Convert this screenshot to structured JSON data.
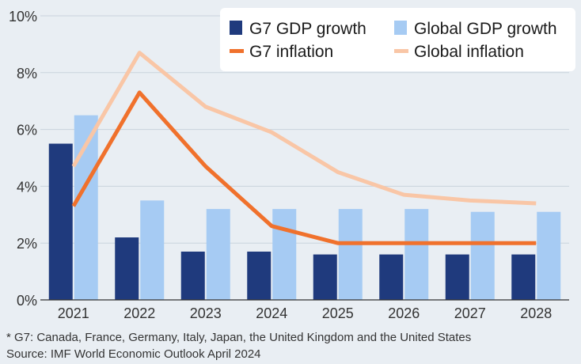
{
  "chart_data": {
    "type": "bar",
    "categories": [
      "2021",
      "2022",
      "2023",
      "2024",
      "2025",
      "2026",
      "2027",
      "2028"
    ],
    "series": [
      {
        "name": "G7 GDP growth",
        "kind": "bar",
        "color": "#1f3a7d",
        "values": [
          5.5,
          2.2,
          1.7,
          1.7,
          1.6,
          1.6,
          1.6,
          1.6
        ]
      },
      {
        "name": "Global GDP growth",
        "kind": "bar",
        "color": "#a6cbf3",
        "values": [
          6.5,
          3.5,
          3.2,
          3.2,
          3.2,
          3.2,
          3.1,
          3.1
        ]
      },
      {
        "name": "G7 inflation",
        "kind": "line",
        "color": "#f0712c",
        "values": [
          3.3,
          7.3,
          4.7,
          2.6,
          2.0,
          2.0,
          2.0,
          2.0
        ]
      },
      {
        "name": "Global inflation",
        "kind": "line",
        "color": "#f9c6a6",
        "values": [
          4.7,
          8.7,
          6.8,
          5.9,
          4.5,
          3.7,
          3.5,
          3.4
        ]
      }
    ],
    "y_ticks": [
      "0%",
      "2%",
      "4%",
      "6%",
      "8%",
      "10%"
    ],
    "ylim": [
      0,
      10
    ],
    "grid": true,
    "legend_position": "top-right"
  },
  "footnotes": {
    "note": "* G7: Canada, France, Germany, Italy, Japan, the United Kingdom and the United States",
    "source": "Source: IMF World Economic Outlook April 2024"
  }
}
